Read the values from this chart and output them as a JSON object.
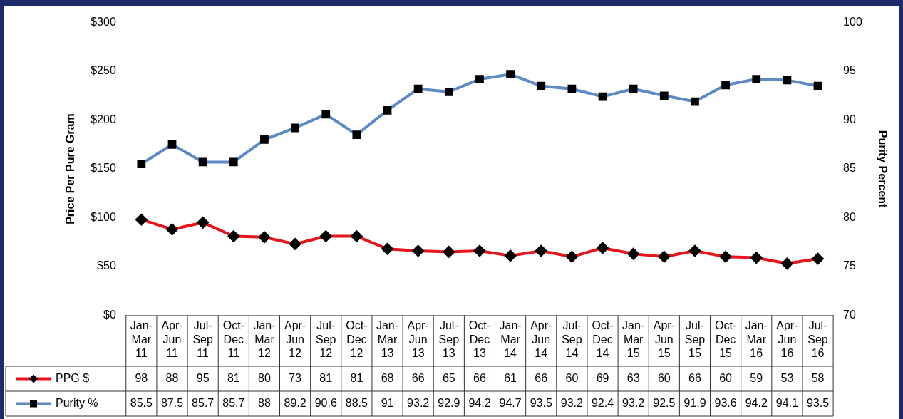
{
  "chart_data": {
    "type": "line",
    "ylabel": "Price Per Pure Gram",
    "y2label": "Purity Percent",
    "categories": [
      "Jan-Mar 11",
      "Apr-Jun 11",
      "Jul-Sep 11",
      "Oct-Dec 11",
      "Jan-Mar 12",
      "Apr-Jun 12",
      "Jul-Sep 12",
      "Oct-Dec 12",
      "Jan-Mar 13",
      "Apr-Jun 13",
      "Jul-Sep 13",
      "Oct-Dec 13",
      "Jan-Mar 14",
      "Apr-Jun 14",
      "Jul-Sep 14",
      "Oct-Dec 14",
      "Jan-Mar 15",
      "Apr-Jun 15",
      "Jul-Sep 15",
      "Oct-Dec 15",
      "Jan-Mar 16",
      "Apr-Jun 16",
      "Jul-Sep 16"
    ],
    "series": [
      {
        "name": "PPG $",
        "color": "#e8141b",
        "marker": "diamond",
        "values": [
          98,
          88,
          95,
          81,
          80,
          73,
          81,
          81,
          68,
          66,
          65,
          66,
          61,
          66,
          60,
          69,
          63,
          60,
          66,
          60,
          59,
          53,
          58
        ]
      },
      {
        "name": "Purity %",
        "color": "#5b8ac6",
        "marker": "square",
        "axis": "y2",
        "values": [
          85.5,
          87.5,
          85.7,
          85.7,
          88,
          89.2,
          90.6,
          88.5,
          91,
          93.2,
          92.9,
          94.2,
          94.7,
          93.5,
          93.2,
          92.4,
          93.2,
          92.5,
          91.9,
          93.6,
          94.2,
          94.1,
          93.5
        ]
      }
    ],
    "ylim": [
      0,
      300
    ],
    "yticks": [
      {
        "value": 0,
        "label": "$0"
      },
      {
        "value": 50,
        "label": "$50"
      },
      {
        "value": 100,
        "label": "$100"
      },
      {
        "value": 150,
        "label": "$150"
      },
      {
        "value": 200,
        "label": "$200"
      },
      {
        "value": 250,
        "label": "$250"
      },
      {
        "value": 300,
        "label": "$300"
      }
    ],
    "y2lim": [
      70,
      100
    ],
    "y2ticks": [
      70,
      75,
      80,
      85,
      90,
      95,
      100
    ],
    "data_labels": true,
    "legend": "bottom left",
    "grid": false
  }
}
